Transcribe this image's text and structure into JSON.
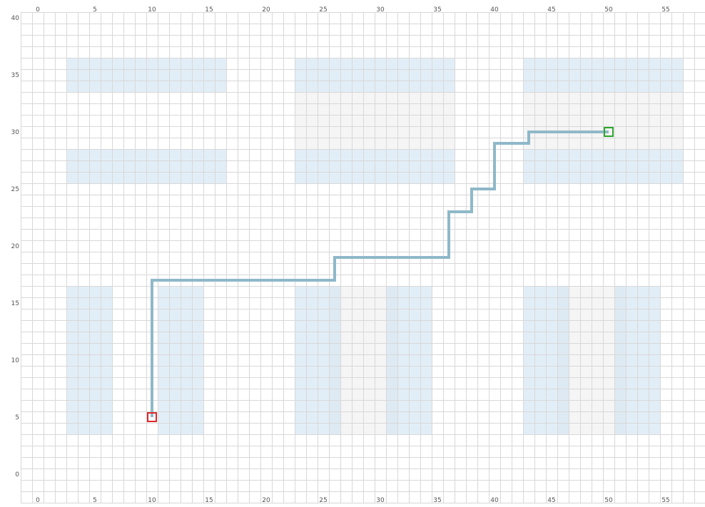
{
  "grid": {
    "x_range": [
      -1,
      58
    ],
    "y_range": [
      -2,
      40
    ],
    "cell_size": 1
  },
  "axes": {
    "top_ticks": [
      "0",
      "5",
      "10",
      "15",
      "20",
      "25",
      "30",
      "35",
      "40",
      "45",
      "50",
      "55"
    ],
    "bottom_ticks": [
      "0",
      "5",
      "10",
      "15",
      "20",
      "25",
      "30",
      "35",
      "40",
      "45",
      "50",
      "55"
    ],
    "left_ticks": [
      "0",
      "5",
      "10",
      "15",
      "20",
      "25",
      "30",
      "35",
      "40"
    ]
  },
  "colors": {
    "background": "#ffffff",
    "gridline": "#d8d8d8",
    "obstacle_fill": "#cfe3f1",
    "shaded_fill": "#f2f2f2",
    "path": "#8fb8c9",
    "start_marker": "#e0262a",
    "goal_marker": "#2ea62e"
  },
  "obstacles": [
    {
      "x": [
        3,
        16
      ],
      "y": [
        34,
        36
      ]
    },
    {
      "x": [
        23,
        36
      ],
      "y": [
        34,
        36
      ]
    },
    {
      "x": [
        43,
        56
      ],
      "y": [
        34,
        36
      ]
    },
    {
      "x": [
        3,
        16
      ],
      "y": [
        26,
        28
      ]
    },
    {
      "x": [
        23,
        36
      ],
      "y": [
        26,
        28
      ]
    },
    {
      "x": [
        43,
        56
      ],
      "y": [
        26,
        28
      ]
    },
    {
      "x": [
        3,
        6
      ],
      "y": [
        4,
        16
      ]
    },
    {
      "x": [
        11,
        14
      ],
      "y": [
        4,
        16
      ]
    },
    {
      "x": [
        23,
        26
      ],
      "y": [
        4,
        16
      ]
    },
    {
      "x": [
        31,
        34
      ],
      "y": [
        4,
        16
      ]
    },
    {
      "x": [
        43,
        46
      ],
      "y": [
        4,
        16
      ]
    },
    {
      "x": [
        51,
        54
      ],
      "y": [
        4,
        16
      ]
    }
  ],
  "shaded_regions": [
    {
      "x": [
        23,
        36
      ],
      "y": [
        29,
        33
      ]
    },
    {
      "x": [
        43,
        56
      ],
      "y": [
        29,
        33
      ]
    },
    {
      "x": [
        26,
        31
      ],
      "y": [
        4,
        16
      ]
    },
    {
      "x": [
        46,
        51
      ],
      "y": [
        4,
        16
      ]
    }
  ],
  "path": [
    [
      10,
      5
    ],
    [
      10,
      17
    ],
    [
      26,
      17
    ],
    [
      26,
      19
    ],
    [
      36,
      19
    ],
    [
      36,
      23
    ],
    [
      38,
      23
    ],
    [
      38,
      25
    ],
    [
      40,
      25
    ],
    [
      40,
      29
    ],
    [
      43,
      29
    ],
    [
      43,
      30
    ],
    [
      50,
      30
    ]
  ],
  "start": {
    "x": 10,
    "y": 5
  },
  "goal": {
    "x": 50,
    "y": 30
  }
}
